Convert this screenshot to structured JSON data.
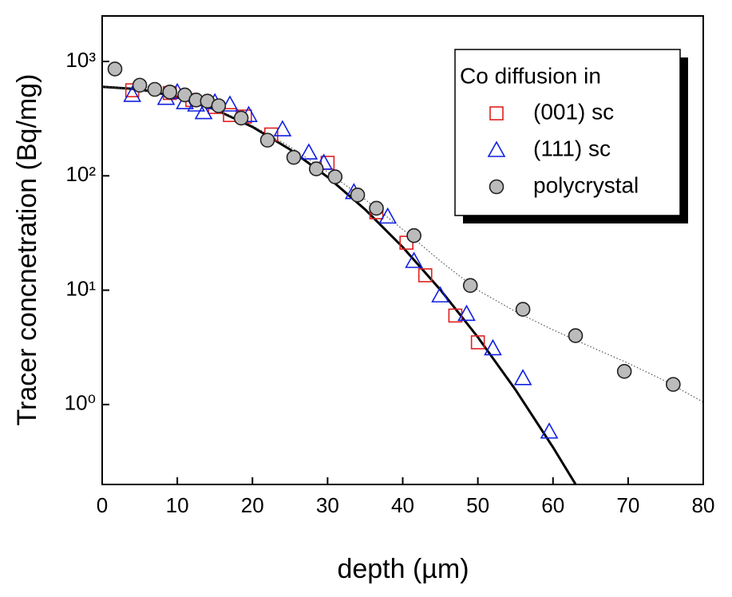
{
  "chart_data": {
    "type": "scatter",
    "xlabel": "depth  (µm)",
    "ylabel": "Tracer concnetration  (Bq/mg)",
    "xlim": [
      0,
      80
    ],
    "xticks": [
      0,
      10,
      20,
      30,
      40,
      50,
      60,
      70,
      80
    ],
    "ylim": [
      0.2,
      2500
    ],
    "ylog": true,
    "yticks": [
      {
        "value": 1,
        "label": "10⁰"
      },
      {
        "value": 10,
        "label": "10¹"
      },
      {
        "value": 100,
        "label": "10²"
      },
      {
        "value": 1000,
        "label": "10³"
      }
    ],
    "legend_title": "Co diffusion in",
    "legend": "upper right",
    "series": [
      {
        "name": "(001) sc",
        "color": "#e02020",
        "marker": "square",
        "x": [
          4,
          9,
          12,
          15,
          17,
          19,
          22.5,
          30,
          36.5,
          40.5,
          43,
          47,
          50
        ],
        "values": [
          560,
          530,
          460,
          400,
          340,
          330,
          230,
          130,
          48,
          26,
          13.5,
          6,
          3.5
        ]
      },
      {
        "name": "(111) sc",
        "color": "#1020e0",
        "marker": "triangle",
        "x": [
          4,
          8.5,
          10,
          11,
          12.5,
          13.5,
          15,
          17,
          19.5,
          24,
          27.5,
          29.5,
          33.5,
          38,
          41.5,
          45,
          48.5,
          52,
          56,
          59.5
        ],
        "values": [
          510,
          480,
          540,
          440,
          420,
          360,
          440,
          420,
          340,
          255,
          160,
          130,
          72,
          44,
          18,
          9,
          6.2,
          3.1,
          1.7,
          0.58
        ]
      },
      {
        "name": "polycrystal",
        "color": "#bbbbbb",
        "marker": "circle",
        "x": [
          1.7,
          5,
          7,
          9,
          11,
          12.5,
          14,
          15.5,
          18.5,
          22,
          25.5,
          28.5,
          31,
          34,
          36.5,
          41.5,
          49,
          56,
          63,
          69.5,
          76
        ],
        "values": [
          860,
          620,
          570,
          540,
          510,
          460,
          450,
          410,
          320,
          205,
          145,
          115,
          98,
          68,
          52,
          30,
          11,
          6.8,
          4.0,
          1.95,
          1.5
        ]
      }
    ],
    "fits": [
      {
        "style": "solid",
        "color": "#000000",
        "x": [
          0,
          5,
          10,
          15,
          20,
          25,
          30,
          35,
          40,
          45,
          50,
          55,
          60,
          63
        ],
        "values": [
          600,
          571,
          490,
          381,
          268,
          170,
          97.7,
          50.8,
          23.8,
          10.1,
          3.88,
          1.35,
          0.423,
          0.201
        ]
      },
      {
        "style": "dotted",
        "color": "#555555",
        "x": [
          0,
          5,
          10,
          15,
          20,
          25,
          30,
          35,
          40,
          45,
          50,
          55,
          60,
          65,
          70,
          75,
          80
        ],
        "values": [
          600,
          570,
          490,
          385,
          275,
          180,
          108,
          62,
          34,
          18,
          10,
          6.5,
          4.5,
          3.2,
          2.3,
          1.6,
          1.05
        ]
      }
    ]
  }
}
